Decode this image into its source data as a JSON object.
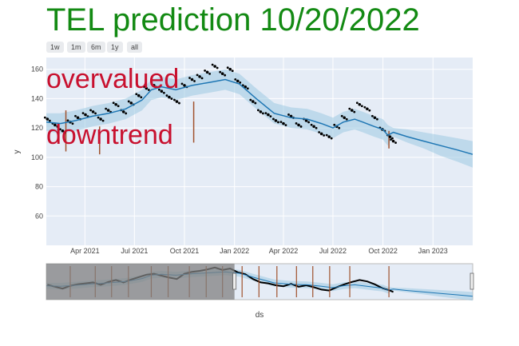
{
  "title": "TEL prediction 10/20/2022",
  "range_buttons": [
    "1w",
    "1m",
    "6m",
    "1y",
    "all"
  ],
  "annotations": [
    "overvalued",
    "downtrend"
  ],
  "colors": {
    "title": "#138a13",
    "annotation": "#c8102e",
    "plot_bg": "#e5ecf6",
    "forecast_line": "#1f77b4",
    "band": "#9ecae1",
    "actual_points": "#000000",
    "changepoint_lines": "#a0522d",
    "rangeslider_shade": "#808080"
  },
  "chart_data": {
    "type": "line",
    "title": "TEL prediction 10/20/2022",
    "xlabel": "ds",
    "ylabel": "y",
    "ylim": [
      40,
      168
    ],
    "xlim": [
      "2021-01-20",
      "2023-03-15"
    ],
    "x_ticks": [
      "Apr 2021",
      "Jul 2021",
      "Oct 2021",
      "Jan 2022",
      "Apr 2022",
      "Jul 2022",
      "Oct 2022",
      "Jan 2023"
    ],
    "y_ticks": [
      60,
      80,
      100,
      120,
      140,
      160
    ],
    "grid": true,
    "legend": "none",
    "range_slider_window": [
      "2022-01-01",
      "2023-03-15"
    ],
    "series": [
      {
        "name": "yhat",
        "x": [
          "2021-01-20",
          "2021-02-15",
          "2021-03-15",
          "2021-04-15",
          "2021-05-15",
          "2021-06-15",
          "2021-07-15",
          "2021-08-01",
          "2021-08-20",
          "2021-09-15",
          "2021-10-15",
          "2021-11-15",
          "2021-12-15",
          "2022-01-10",
          "2022-02-10",
          "2022-03-15",
          "2022-04-15",
          "2022-05-15",
          "2022-06-10",
          "2022-07-01",
          "2022-07-20",
          "2022-08-10",
          "2022-08-25",
          "2022-09-15",
          "2022-10-01",
          "2022-10-10",
          "2022-10-20",
          "2022-11-15",
          "2022-12-15",
          "2023-01-15",
          "2023-02-15",
          "2023-03-15"
        ],
        "values": [
          124,
          123,
          125,
          128,
          130,
          133,
          139,
          146,
          148,
          146,
          149,
          151,
          153,
          150,
          140,
          130,
          127,
          126,
          123,
          120,
          124,
          126,
          124,
          121,
          119,
          115,
          117,
          114,
          111,
          108,
          105,
          102
        ]
      },
      {
        "name": "yhat_upper",
        "x": [
          "2021-01-20",
          "2021-02-15",
          "2021-03-15",
          "2021-04-15",
          "2021-05-15",
          "2021-06-15",
          "2021-07-15",
          "2021-08-01",
          "2021-08-20",
          "2021-09-15",
          "2021-10-15",
          "2021-11-15",
          "2021-12-15",
          "2022-01-10",
          "2022-02-10",
          "2022-03-15",
          "2022-04-15",
          "2022-05-15",
          "2022-06-10",
          "2022-07-01",
          "2022-07-20",
          "2022-08-10",
          "2022-08-25",
          "2022-09-15",
          "2022-10-01",
          "2022-10-10",
          "2022-10-20",
          "2022-11-15",
          "2022-12-15",
          "2023-01-15",
          "2023-02-15",
          "2023-03-15"
        ],
        "values": [
          130,
          130,
          132,
          135,
          137,
          140,
          146,
          153,
          155,
          153,
          156,
          158,
          160,
          157,
          147,
          137,
          134,
          133,
          130,
          127,
          131,
          133,
          131,
          128,
          126,
          122,
          120,
          119,
          117,
          115,
          113,
          111
        ]
      },
      {
        "name": "yhat_lower",
        "x": [
          "2021-01-20",
          "2021-02-15",
          "2021-03-15",
          "2021-04-15",
          "2021-05-15",
          "2021-06-15",
          "2021-07-15",
          "2021-08-01",
          "2021-08-20",
          "2021-09-15",
          "2021-10-15",
          "2021-11-15",
          "2021-12-15",
          "2022-01-10",
          "2022-02-10",
          "2022-03-15",
          "2022-04-15",
          "2022-05-15",
          "2022-06-10",
          "2022-07-01",
          "2022-07-20",
          "2022-08-10",
          "2022-08-25",
          "2022-09-15",
          "2022-10-01",
          "2022-10-10",
          "2022-10-20",
          "2022-11-15",
          "2022-12-15",
          "2023-01-15",
          "2023-02-15",
          "2023-03-15"
        ],
        "values": [
          118,
          116,
          118,
          121,
          123,
          126,
          132,
          139,
          141,
          139,
          142,
          144,
          146,
          143,
          133,
          123,
          120,
          119,
          116,
          113,
          117,
          119,
          117,
          114,
          112,
          108,
          114,
          110,
          106,
          101,
          97,
          93
        ]
      },
      {
        "name": "y",
        "x": [
          "2021-01-22",
          "2021-02-05",
          "2021-02-19",
          "2021-03-05",
          "2021-03-19",
          "2021-04-02",
          "2021-04-16",
          "2021-04-30",
          "2021-05-14",
          "2021-05-28",
          "2021-06-11",
          "2021-06-25",
          "2021-07-09",
          "2021-07-23",
          "2021-08-06",
          "2021-08-20",
          "2021-09-03",
          "2021-09-17",
          "2021-10-01",
          "2021-10-15",
          "2021-10-29",
          "2021-11-12",
          "2021-11-26",
          "2021-12-10",
          "2021-12-24",
          "2022-01-07",
          "2022-01-21",
          "2022-02-04",
          "2022-02-18",
          "2022-03-04",
          "2022-03-18",
          "2022-04-01",
          "2022-04-15",
          "2022-04-29",
          "2022-05-13",
          "2022-05-27",
          "2022-06-10",
          "2022-06-24",
          "2022-07-08",
          "2022-07-22",
          "2022-08-05",
          "2022-08-19",
          "2022-09-02",
          "2022-09-16",
          "2022-09-30",
          "2022-10-14",
          "2022-10-20"
        ],
        "values": [
          126,
          122,
          118,
          124,
          127,
          129,
          131,
          126,
          132,
          136,
          131,
          137,
          142,
          147,
          149,
          145,
          141,
          138,
          149,
          153,
          155,
          158,
          162,
          157,
          160,
          152,
          148,
          138,
          131,
          129,
          125,
          123,
          128,
          122,
          125,
          121,
          116,
          114,
          121,
          127,
          132,
          136,
          133,
          127,
          119,
          114,
          111
        ]
      }
    ],
    "changepoints": [
      "2021-02-25",
      "2021-04-28",
      "2021-10-18",
      "2022-10-12"
    ]
  }
}
